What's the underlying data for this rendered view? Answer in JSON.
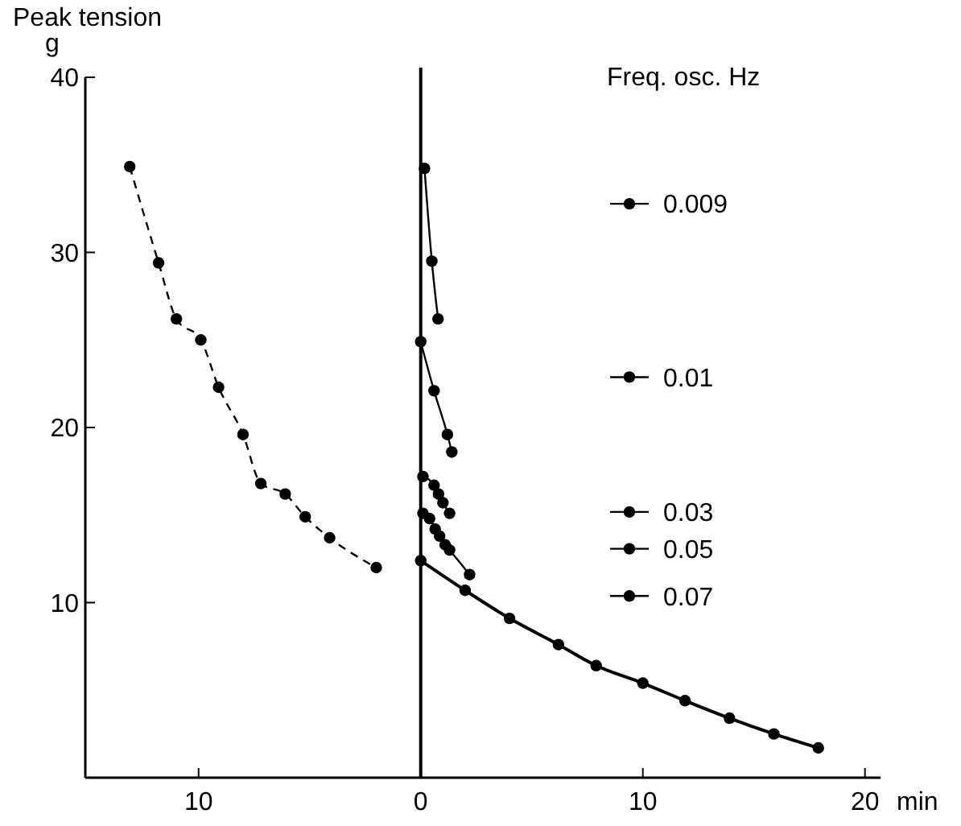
{
  "chart_data": {
    "type": "line",
    "ylabel": "Peak tension\ng",
    "xlabel": "min",
    "legend_title": "Freq. osc. Hz",
    "xlim": [
      -15.1,
      20.7
    ],
    "xticks": [
      {
        "value": -10,
        "label": "10"
      },
      0,
      10,
      20
    ],
    "ylim": [
      0,
      40
    ],
    "yticks": [
      10,
      20,
      30,
      40
    ],
    "ref_lines": [
      {
        "axis": "x",
        "value": 0,
        "label": null,
        "color": "#000000"
      }
    ],
    "marker": "circle",
    "grid": false,
    "legend": "right",
    "series": [
      {
        "color": "#000000",
        "line_style": "dashed",
        "x": [
          -13.1,
          -11.8,
          -11.0,
          -9.9,
          -9.1,
          -8.0,
          -7.2,
          -6.1,
          -5.2,
          -4.1,
          -2.0
        ],
        "values": [
          34.9,
          29.4,
          26.2,
          25.0,
          22.3,
          19.6,
          16.8,
          16.2,
          14.9,
          13.7,
          12.0
        ]
      },
      {
        "name": "0.009",
        "color": "#000000",
        "line_style": "solid",
        "x": [
          0.17,
          0.5,
          0.78
        ],
        "values": [
          34.8,
          29.5,
          26.2
        ]
      },
      {
        "name": "0.01",
        "color": "#000000",
        "line_style": "solid",
        "x": [
          0,
          0.6,
          1.2,
          1.4
        ],
        "values": [
          24.9,
          22.1,
          19.6,
          18.6
        ]
      },
      {
        "name": "0.03",
        "color": "#000000",
        "line_style": "solid",
        "x": [
          0.1,
          0.6,
          0.8,
          1.0,
          1.3
        ],
        "values": [
          17.2,
          16.7,
          16.2,
          15.7,
          15.1
        ]
      },
      {
        "name": "0.05",
        "color": "#000000",
        "line_style": "solid",
        "x": [
          0.1,
          0.4,
          0.65,
          0.85,
          1.1,
          1.3,
          2.2
        ],
        "values": [
          15.1,
          14.8,
          14.2,
          13.8,
          13.3,
          13.0,
          11.6
        ]
      },
      {
        "name": "0.07",
        "color": "#000000",
        "line_style": "solid",
        "x": [
          0,
          2.0,
          4.0,
          6.2,
          7.9,
          10.0,
          11.9,
          13.9,
          15.9,
          17.9
        ],
        "values": [
          12.4,
          10.7,
          9.1,
          7.6,
          6.4,
          5.4,
          4.4,
          3.4,
          2.5,
          1.7
        ]
      }
    ]
  }
}
